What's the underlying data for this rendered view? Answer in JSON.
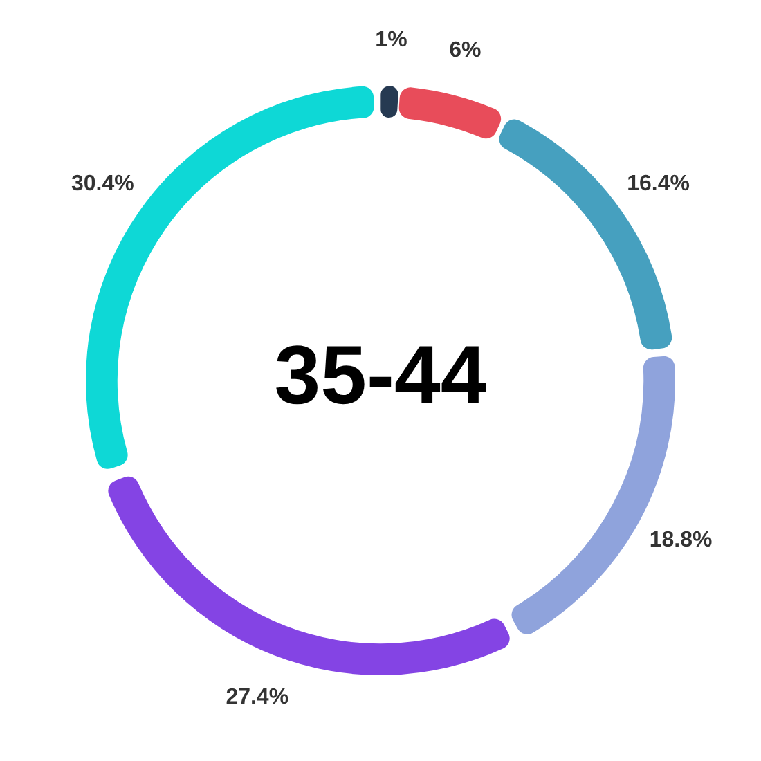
{
  "chart_data": {
    "type": "donut",
    "title": "35-44",
    "categories": [
      null,
      null,
      null,
      null,
      null,
      null
    ],
    "values": [
      1,
      6,
      16.4,
      18.8,
      27.4,
      30.4
    ],
    "colors": [
      "#263a52",
      "#e84c5a",
      "#46a0bf",
      "#8fa3dc",
      "#8444e4",
      "#0ed8d6"
    ],
    "value_labels": [
      "1%",
      "6%",
      "16.4%",
      "18.8%",
      "27.4%",
      "30.4%"
    ]
  }
}
